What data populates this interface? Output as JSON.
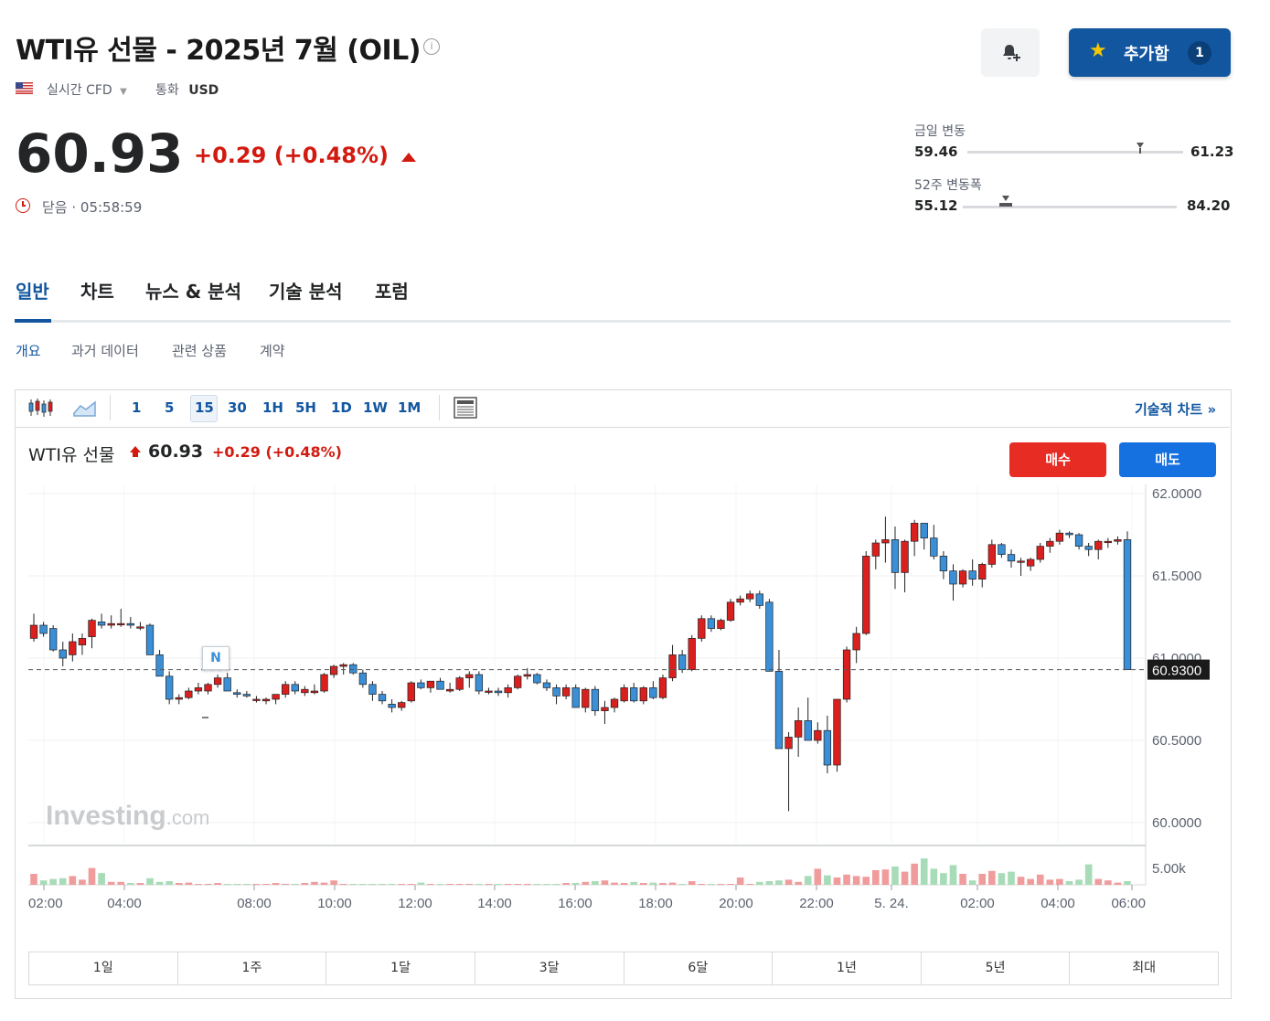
{
  "header": {
    "title": "WTI유 선물 - 2025년 7월 (OIL)",
    "info_icon": "ⓘ",
    "realtime_label": "실시간 CFD",
    "currency_label": "통화",
    "currency_value": "USD",
    "watchlist_label": "추가함",
    "watchlist_count": "1"
  },
  "quote": {
    "price": "60.93",
    "change": "+0.29",
    "change_pct": "(+0.48%)",
    "status": "닫음 · 05:58:59"
  },
  "ranges": {
    "day_label": "금일 변동",
    "day_low": "59.46",
    "day_high": "61.23",
    "day_marker": 0.8,
    "week52_label": "52주 변동폭",
    "week52_low": "55.12",
    "week52_high": "84.20",
    "week52_marker": 0.2
  },
  "tabs": [
    {
      "label": "일반"
    },
    {
      "label": "차트"
    },
    {
      "label": "뉴스 & 분석"
    },
    {
      "label": "기술 분석"
    },
    {
      "label": "포럼"
    }
  ],
  "subtabs": [
    {
      "label": "개요"
    },
    {
      "label": "과거 데이터"
    },
    {
      "label": "관련 상품"
    },
    {
      "label": "계약"
    }
  ],
  "toolbar": {
    "intervals": [
      "1",
      "5",
      "15",
      "30",
      "1H",
      "5H",
      "1D",
      "1W",
      "1M"
    ],
    "active_interval": "15",
    "technical_chart_label": "기술적 차트 »"
  },
  "chart_header": {
    "name": "WTI유 선물",
    "price": "60.93",
    "change": "+0.29 (+0.48%)",
    "buy_label": "매수",
    "sell_label": "매도",
    "news_marker": "N",
    "watermark_brand": "Investing",
    "watermark_suffix": ".com"
  },
  "chart_data": {
    "type": "candlestick",
    "y_ticks": [
      "62.0000",
      "61.5000",
      "61.0000",
      "60.5000",
      "60.0000"
    ],
    "ylim": [
      59.95,
      62.05
    ],
    "current_price_label": "60.9300",
    "current_price": 60.93,
    "volume_tick": "5.00k",
    "volume_max": 6000,
    "x_ticks": [
      "02:00",
      "04:00",
      "08:00",
      "10:00",
      "12:00",
      "14:00",
      "16:00",
      "18:00",
      "20:00",
      "22:00",
      "5. 24.",
      "02:00",
      "04:00",
      "06:00"
    ],
    "up_color": "#d9201f",
    "down_color": "#3a8fd6",
    "vol_up_color": "#f19c9c",
    "vol_down_color": "#a8dbb7"
  },
  "periods": [
    "1일",
    "1주",
    "1달",
    "3달",
    "6달",
    "1년",
    "5년",
    "최대"
  ]
}
